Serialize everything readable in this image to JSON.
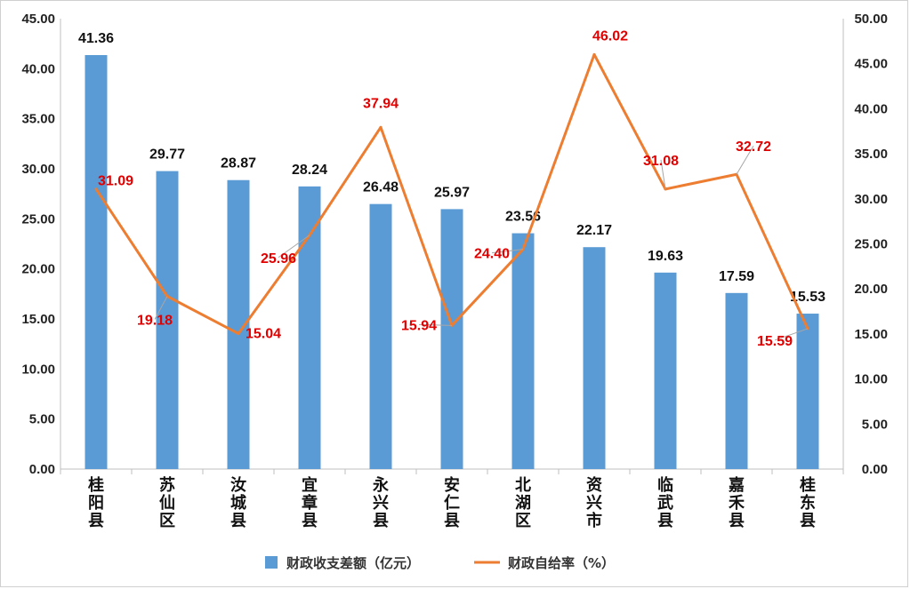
{
  "chart_data": {
    "type": "bar",
    "categories": [
      "桂阳县",
      "苏仙区",
      "汝城县",
      "宜章县",
      "永兴县",
      "安仁县",
      "北湖区",
      "资兴市",
      "临武县",
      "嘉禾县",
      "桂东县"
    ],
    "series": [
      {
        "name": "财政收支差额（亿元）",
        "type": "bar",
        "axis": "left",
        "color": "#5B9BD5",
        "values": [
          41.36,
          29.77,
          28.87,
          28.24,
          26.48,
          25.97,
          23.56,
          22.17,
          19.63,
          17.59,
          15.53
        ],
        "labels": [
          "41.36",
          "29.77",
          "28.87",
          "28.24",
          "26.48",
          "25.97",
          "23.56",
          "22.17",
          "19.63",
          "17.59",
          "15.53"
        ]
      },
      {
        "name": "财政自给率（%）",
        "type": "line",
        "axis": "right",
        "color": "#ED7D31",
        "label_color": "#E00000",
        "values": [
          31.09,
          19.18,
          15.04,
          25.96,
          37.94,
          15.94,
          24.4,
          46.02,
          31.08,
          32.72,
          15.59
        ],
        "labels": [
          "31.09",
          "19.18",
          "15.04",
          "25.96",
          "37.94",
          "15.94",
          "24.40",
          "46.02",
          "31.08",
          "32.72",
          "15.59"
        ]
      }
    ],
    "left_axis": {
      "ylim": [
        0,
        45
      ],
      "ticks": [
        "0.00",
        "5.00",
        "10.00",
        "15.00",
        "20.00",
        "25.00",
        "30.00",
        "35.00",
        "40.00",
        "45.00"
      ]
    },
    "right_axis": {
      "ylim": [
        0,
        50
      ],
      "ticks": [
        "0.00",
        "5.00",
        "10.00",
        "15.00",
        "20.00",
        "25.00",
        "30.00",
        "35.00",
        "40.00",
        "45.00",
        "50.00"
      ]
    },
    "grid": false,
    "legend": "bottom"
  }
}
